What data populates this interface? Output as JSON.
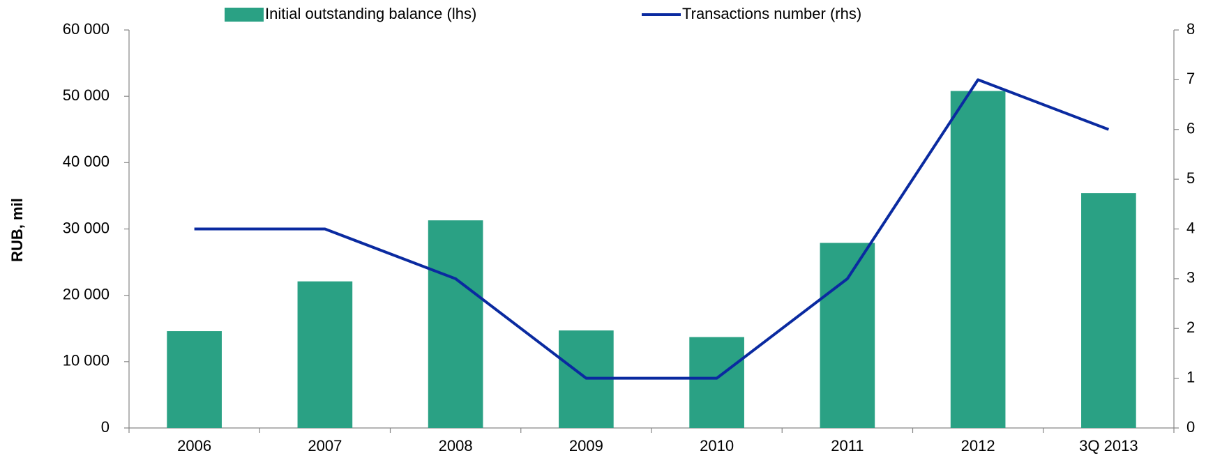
{
  "chart_data": {
    "type": "bar_line",
    "ylabel": "RUB, mil",
    "categories": [
      "2006",
      "2007",
      "2008",
      "2009",
      "2010",
      "2011",
      "2012",
      "3Q 2013"
    ],
    "series": [
      {
        "name": "Initial outstanding balance (lhs)",
        "type": "bar",
        "color": "#2aa184",
        "values": [
          14600,
          22100,
          31300,
          14700,
          13700,
          27900,
          50800,
          35400
        ]
      },
      {
        "name": "Transactions number (rhs)",
        "type": "line",
        "axis": "y2",
        "color": "#0a2aa0",
        "values": [
          4,
          4,
          3,
          1,
          1,
          3,
          7,
          6
        ]
      }
    ],
    "ylim": [
      0,
      60000
    ],
    "yticks": [
      0,
      {
        "value": 10000,
        "label": "10 000"
      },
      {
        "value": 20000,
        "label": "20 000"
      },
      {
        "value": 30000,
        "label": "30 000"
      },
      {
        "value": 40000,
        "label": "40 000"
      },
      {
        "value": 50000,
        "label": "50 000"
      },
      {
        "value": 60000,
        "label": "60 000"
      }
    ],
    "y2lim": [
      0,
      8
    ],
    "y2ticks": [
      0,
      1,
      2,
      3,
      4,
      5,
      6,
      7,
      8
    ],
    "legend": "top"
  }
}
